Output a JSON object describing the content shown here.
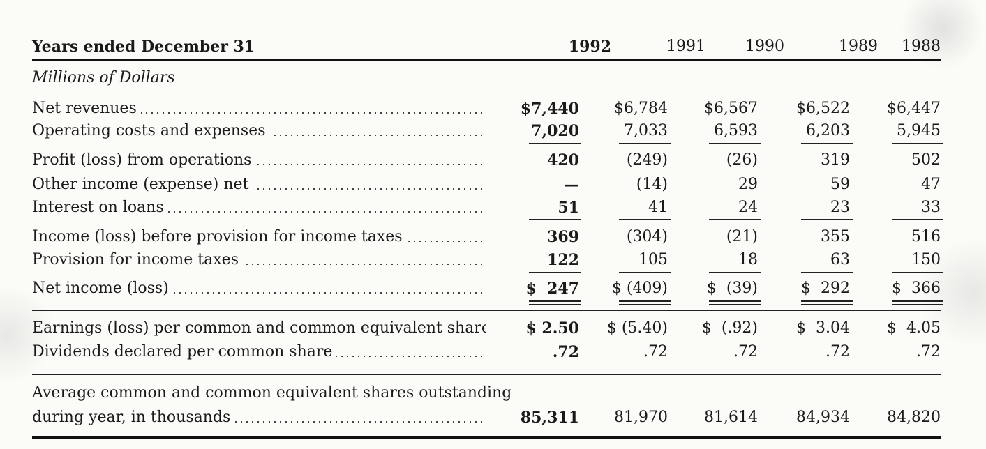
{
  "table": {
    "header_label": "Years ended December 31",
    "years": [
      "1992",
      "1991",
      "1990",
      "1989",
      "1988"
    ],
    "units": "Millions of Dollars",
    "rows": [
      {
        "label": "Net revenues",
        "values": [
          "$7,440",
          "$6,784",
          "$6,567",
          "$6,522",
          "$6,447"
        ]
      },
      {
        "label": "Operating costs and expenses",
        "values": [
          "7,020",
          "7,033",
          "6,593",
          "6,203",
          "5,945"
        ]
      },
      {
        "label": "Profit (loss) from operations",
        "values": [
          "420",
          "(249)",
          "(26)",
          "319",
          "502"
        ]
      },
      {
        "label": "Other income (expense) net",
        "values": [
          "—",
          "(14)",
          "29",
          "59",
          "47"
        ]
      },
      {
        "label": "Interest on loans",
        "values": [
          "51",
          "41",
          "24",
          "23",
          "33"
        ]
      },
      {
        "label": "Income (loss) before provision for income taxes",
        "values": [
          "369",
          "(304)",
          "(21)",
          "355",
          "516"
        ]
      },
      {
        "label": "Provision for income taxes",
        "values": [
          "122",
          "105",
          "18",
          "63",
          "150"
        ]
      },
      {
        "label": "Net income (loss)",
        "values": [
          "$  247",
          "$ (409)",
          "$  (39)",
          "$  292",
          "$  366"
        ]
      },
      {
        "label": "Earnings (loss) per common and common equivalent share",
        "values": [
          "$ 2.50",
          "$ (5.40)",
          "$  (.92)",
          "$  3.04",
          "$  4.05"
        ]
      },
      {
        "label": "Dividends declared per common share",
        "values": [
          ".72",
          ".72",
          ".72",
          ".72",
          ".72"
        ]
      }
    ],
    "shares_label_line1": "Average common and common equivalent shares outstanding",
    "shares_label_line2": "during year, in thousands",
    "shares_values": [
      "85,311",
      "81,970",
      "81,614",
      "84,934",
      "84,820"
    ]
  }
}
